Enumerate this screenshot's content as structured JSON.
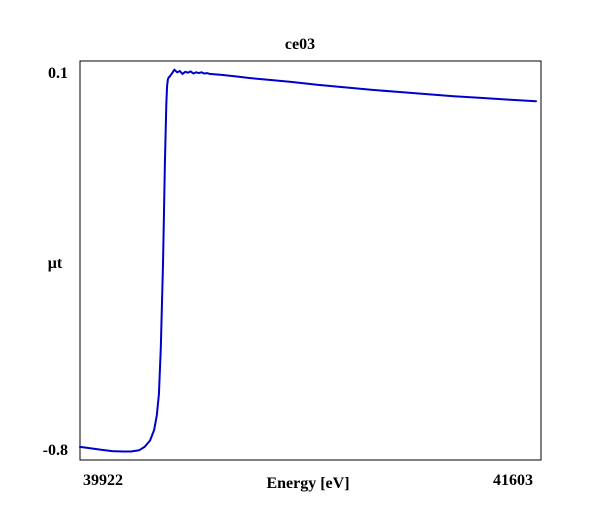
{
  "chart_data": {
    "type": "line",
    "title": "ce03",
    "xlabel": "Energy [eV]",
    "ylabel": "μt",
    "xlim": [
      39922,
      41603
    ],
    "ylim": [
      -0.8,
      0.1
    ],
    "x_tick_labels": [
      "39922",
      "41603"
    ],
    "y_tick_labels": [
      "0.1",
      "-0.8"
    ],
    "grid": false,
    "line_color": "#0000cc",
    "series": [
      {
        "x": [
          39922,
          39960,
          40000,
          40040,
          40080,
          40110,
          40140,
          40160,
          40180,
          40195,
          40205,
          40213,
          40220,
          40228,
          40235,
          40240,
          40243,
          40246,
          40249,
          40252,
          40256,
          40262,
          40270,
          40280,
          40290,
          40300,
          40310,
          40320,
          40330,
          40340,
          40350,
          40360,
          40370,
          40380,
          40390,
          40400,
          40420,
          40440,
          40470,
          40500,
          40550,
          40600,
          40700,
          40800,
          40900,
          41000,
          41100,
          41200,
          41300,
          41400,
          41500,
          41603
        ],
        "y": [
          -0.795,
          -0.798,
          -0.802,
          -0.805,
          -0.806,
          -0.806,
          -0.803,
          -0.795,
          -0.78,
          -0.755,
          -0.72,
          -0.67,
          -0.56,
          -0.36,
          -0.12,
          0.02,
          0.065,
          0.08,
          0.085,
          0.086,
          0.09,
          0.095,
          0.103,
          0.097,
          0.1,
          0.093,
          0.098,
          0.096,
          0.099,
          0.094,
          0.097,
          0.095,
          0.097,
          0.094,
          0.095,
          0.093,
          0.092,
          0.091,
          0.089,
          0.087,
          0.083,
          0.08,
          0.074,
          0.067,
          0.061,
          0.055,
          0.05,
          0.045,
          0.04,
          0.036,
          0.032,
          0.028
        ]
      }
    ]
  }
}
